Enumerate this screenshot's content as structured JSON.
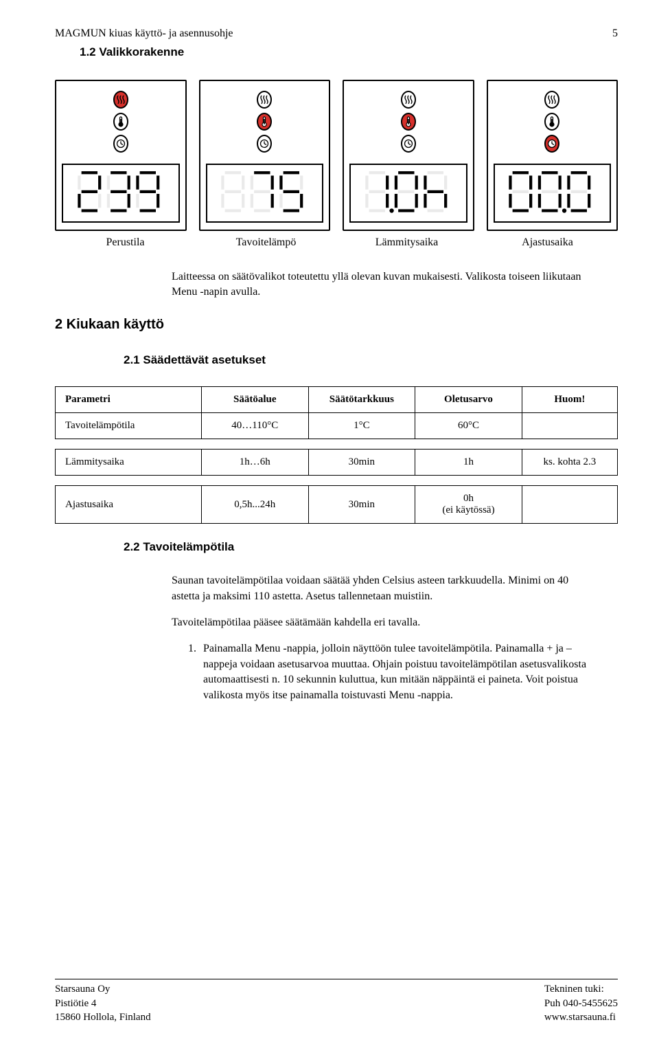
{
  "header": {
    "title": "MAGMUN kiuas käyttö- ja asennusohje",
    "page": "5"
  },
  "section12": "1.2 Valikkorakenne",
  "panels": [
    {
      "active_index": 0,
      "display": "239",
      "decimal": -1,
      "label": "Perustila"
    },
    {
      "active_index": 1,
      "display": "75",
      "decimal": -1,
      "label": "Tavoitelämpö"
    },
    {
      "active_index": 1,
      "display": "1.0h",
      "decimal": 0,
      "label": "Lämmitysaika"
    },
    {
      "active_index": 2,
      "display": "00.0",
      "decimal": 1,
      "label": "Ajastusaika"
    }
  ],
  "intro": "Laitteessa on säätövalikot toteutettu yllä olevan kuvan mukaisesti. Valikosta toiseen liikutaan Menu -napin avulla.",
  "h2_main": "2   Kiukaan käyttö",
  "h21": "2.1     Säädettävät asetukset",
  "table1": {
    "headers": [
      "Parametri",
      "Säätöalue",
      "Säätötarkkuus",
      "Oletusarvo",
      "Huom!"
    ],
    "rows": [
      [
        "Tavoitelämpötila",
        "40…110°C",
        "1°C",
        "60°C",
        ""
      ]
    ]
  },
  "table2": {
    "rows": [
      [
        "Lämmitysaika",
        "1h…6h",
        "30min",
        "1h",
        "ks. kohta 2.3"
      ]
    ]
  },
  "table3": {
    "rows": [
      [
        "Ajastusaika",
        "0,5h...24h",
        "30min",
        "0h\n(ei käytössä)",
        ""
      ]
    ]
  },
  "h22": "2.2     Tavoitelämpötila",
  "para1": "Saunan tavoitelämpötilaa voidaan säätää yhden Celsius asteen tarkkuudella. Minimi on 40 astetta ja maksimi 110 astetta. Asetus tallennetaan muistiin.",
  "para2": "Tavoitelämpötilaa pääsee säätämään kahdella eri tavalla.",
  "list1": "Painamalla Menu -nappia, jolloin näyttöön tulee tavoitelämpötila. Painamalla + ja – nappeja voidaan asetusarvoa muuttaa. Ohjain poistuu tavoitelämpötilan asetusvalikosta automaattisesti n. 10 sekunnin kuluttua, kun mitään näppäintä ei paineta. Voit poistua valikosta myös itse painamalla toistuvasti Menu -nappia.",
  "footer": {
    "left": [
      "Starsauna Oy",
      "Pistiötie 4",
      "15860 Hollola, Finland"
    ],
    "right": [
      "Tekninen tuki:",
      "Puh 040-5455625",
      "www.starsauna.fi"
    ]
  },
  "colors": {
    "active_indicator": "#d6302b",
    "border": "#000000",
    "ghost_segment": "#eaeaea"
  }
}
